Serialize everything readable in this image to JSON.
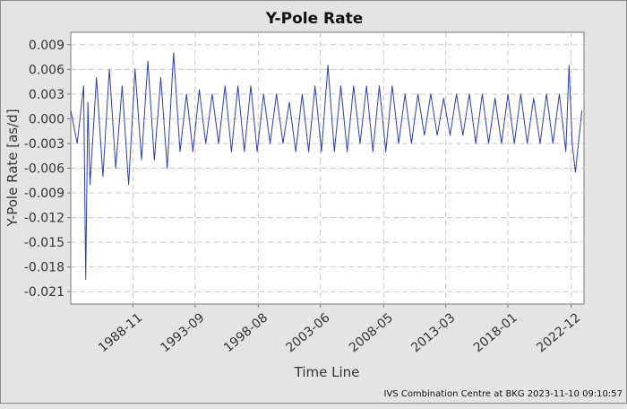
{
  "footer": {
    "credit": "IVS Combination Centre at BKG 2023-11-10 09:10:57"
  },
  "colors": {
    "series": "#2b3fb5",
    "background": "#e4e4e4",
    "plot_background": "#ffffff",
    "grid": "#c8c8c8"
  },
  "chart_data": {
    "type": "line",
    "title": "Y-Pole Rate",
    "xlabel": "Time Line",
    "ylabel": "Y-Pole Rate [as/d]",
    "xlim": [
      "1984-01",
      "2023-12"
    ],
    "ylim": [
      -0.0225,
      0.0105
    ],
    "x_ticks": [
      "1988-11",
      "1993-09",
      "1998-08",
      "2003-06",
      "2008-05",
      "2013-03",
      "2018-01",
      "2022-12"
    ],
    "y_ticks": [
      0.009,
      0.006,
      0.003,
      0.0,
      -0.003,
      -0.006,
      -0.009,
      -0.012,
      -0.015,
      -0.018,
      -0.021
    ],
    "y_tick_labels": [
      "0.009",
      "0.006",
      "0.003",
      "0.000",
      "-0.003",
      "-0.006",
      "-0.009",
      "-0.012",
      "-0.015",
      "-0.018",
      "-0.021"
    ],
    "grid": true,
    "legend": "none",
    "series": [
      {
        "x": [
          "1984-01",
          "1984-07",
          "1985-01",
          "1985-03",
          "1985-05",
          "1985-07",
          "1986-01",
          "1986-07",
          "1987-01",
          "1987-07",
          "1988-01",
          "1988-07",
          "1989-01",
          "1989-07",
          "1990-01",
          "1990-07",
          "1991-01",
          "1991-07",
          "1992-01",
          "1992-07",
          "1993-01",
          "1993-07",
          "1994-01",
          "1994-07",
          "1995-01",
          "1995-07",
          "1996-01",
          "1996-07",
          "1997-01",
          "1997-07",
          "1998-01",
          "1998-07",
          "1999-01",
          "1999-07",
          "2000-01",
          "2000-07",
          "2001-01",
          "2001-07",
          "2002-01",
          "2002-07",
          "2003-01",
          "2003-07",
          "2004-01",
          "2004-07",
          "2005-01",
          "2005-07",
          "2006-01",
          "2006-07",
          "2007-01",
          "2007-07",
          "2008-01",
          "2008-07",
          "2009-01",
          "2009-07",
          "2010-01",
          "2010-07",
          "2011-01",
          "2011-07",
          "2012-01",
          "2012-07",
          "2013-01",
          "2013-07",
          "2014-01",
          "2014-07",
          "2015-01",
          "2015-07",
          "2016-01",
          "2016-07",
          "2017-01",
          "2017-07",
          "2018-01",
          "2018-07",
          "2019-01",
          "2019-07",
          "2020-01",
          "2020-07",
          "2021-01",
          "2021-07",
          "2022-01",
          "2022-07",
          "2022-10",
          "2023-01",
          "2023-04",
          "2023-10"
        ],
        "y": [
          0.001,
          -0.003,
          0.004,
          -0.0195,
          0.002,
          -0.008,
          0.005,
          -0.007,
          0.006,
          -0.006,
          0.004,
          -0.008,
          0.006,
          -0.005,
          0.007,
          -0.005,
          0.005,
          -0.006,
          0.008,
          -0.004,
          0.003,
          -0.004,
          0.0035,
          -0.003,
          0.003,
          -0.003,
          0.004,
          -0.004,
          0.004,
          -0.004,
          0.004,
          -0.004,
          0.003,
          -0.003,
          0.003,
          -0.003,
          0.002,
          -0.004,
          0.003,
          -0.004,
          0.004,
          -0.004,
          0.0065,
          -0.004,
          0.004,
          -0.004,
          0.004,
          -0.003,
          0.004,
          -0.004,
          0.004,
          -0.004,
          0.004,
          -0.003,
          0.003,
          -0.003,
          0.003,
          -0.002,
          0.003,
          -0.002,
          0.0025,
          -0.002,
          0.003,
          -0.002,
          0.003,
          -0.003,
          0.003,
          -0.003,
          0.0025,
          -0.003,
          0.003,
          -0.003,
          0.003,
          -0.003,
          0.0025,
          -0.003,
          0.003,
          -0.003,
          0.003,
          -0.004,
          0.0065,
          -0.003,
          -0.0065,
          0.001
        ]
      }
    ]
  }
}
